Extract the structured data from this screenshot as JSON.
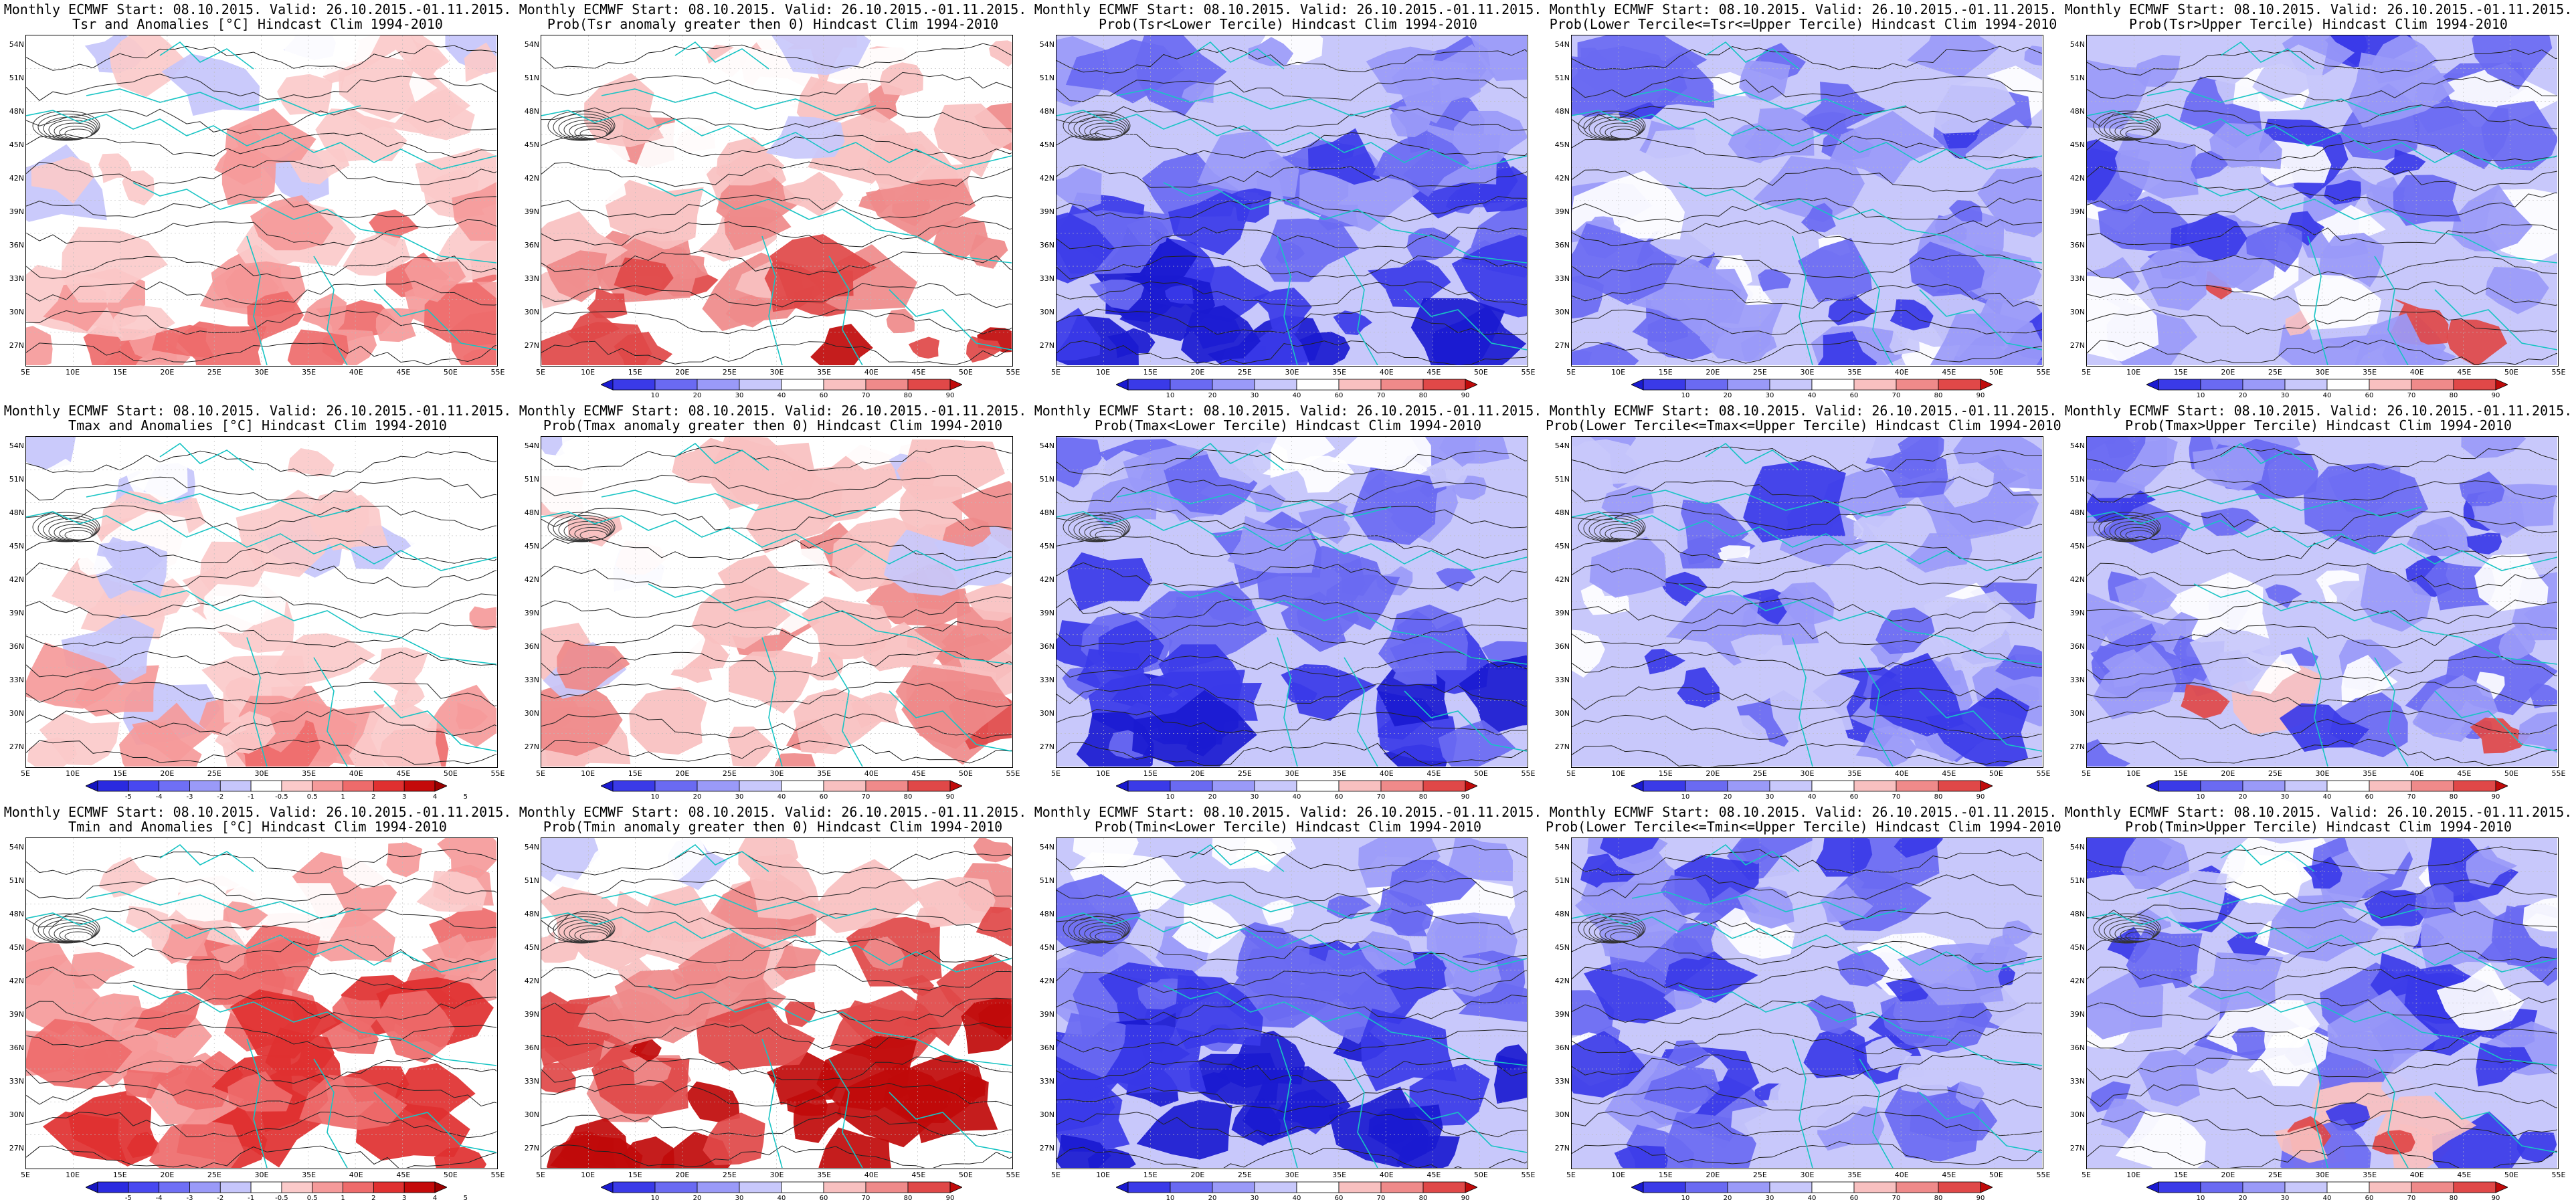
{
  "title_line1": "Monthly ECMWF Start: 08.10.2015. Valid: 26.10.2015.-01.11.2015.",
  "lat_ticks": [
    "54N",
    "51N",
    "48N",
    "45N",
    "42N",
    "39N",
    "36N",
    "33N",
    "30N",
    "27N"
  ],
  "lon_ticks": [
    "5E",
    "10E",
    "15E",
    "20E",
    "25E",
    "30E",
    "35E",
    "40E",
    "45E",
    "50E",
    "55E"
  ],
  "colorbars": {
    "anomaly": {
      "labels": [
        "-5",
        "-4",
        "-3",
        "-2",
        "-1",
        "-0.5",
        "0.5",
        "1",
        "2",
        "3",
        "4",
        "5"
      ],
      "colors": [
        "#1515c0",
        "#2a2ae0",
        "#4848f0",
        "#6f6ff5",
        "#9a9af8",
        "#c6c6fb",
        "#ffffff",
        "#fbcaca",
        "#f59a9a",
        "#ee6b6b",
        "#e03030",
        "#c40a0a",
        "#9c0000"
      ]
    },
    "probability": {
      "labels": [
        "10",
        "20",
        "30",
        "40",
        "60",
        "70",
        "80",
        "90"
      ],
      "colors": [
        "#1a1ad0",
        "#3a3ae8",
        "#6a6af2",
        "#9a9af8",
        "#c8c8fb",
        "#ffffff",
        "#f8c0c0",
        "#ef8a8a",
        "#e04848",
        "#c00a0a"
      ]
    }
  },
  "panels": [
    {
      "title2": "Tsr and Anomalies [°C] Hindcast Clim 1994-2010",
      "kind": "anom",
      "bar": "anomaly",
      "show_bar": false,
      "tone": 0.45
    },
    {
      "title2": "Prob(Tsr anomaly greater then 0) Hindcast Clim 1994-2010",
      "kind": "warm",
      "bar": "probability",
      "show_bar": true,
      "tone": 0.55
    },
    {
      "title2": "Prob(Tsr<Lower Tercile) Hindcast Clim 1994-2010",
      "kind": "cold",
      "bar": "probability",
      "show_bar": true,
      "tone": 0.75
    },
    {
      "title2": "Prob(Lower Tercile<=Tsr<=Upper Tercile) Hindcast Clim 1994-2010",
      "kind": "mid",
      "bar": "probability",
      "show_bar": true,
      "tone": 0.7
    },
    {
      "title2": "Prob(Tsr>Upper Tercile) Hindcast Clim 1994-2010",
      "kind": "upper",
      "bar": "probability",
      "show_bar": true,
      "tone": 0.6
    },
    {
      "title2": "Tmax and Anomalies [°C] Hindcast Clim 1994-2010",
      "kind": "anom",
      "bar": "anomaly",
      "show_bar": true,
      "tone": 0.35
    },
    {
      "title2": "Prob(Tmax anomaly greater then 0) Hindcast Clim 1994-2010",
      "kind": "warm",
      "bar": "probability",
      "show_bar": true,
      "tone": 0.4
    },
    {
      "title2": "Prob(Tmax<Lower Tercile) Hindcast Clim 1994-2010",
      "kind": "cold",
      "bar": "probability",
      "show_bar": true,
      "tone": 0.65
    },
    {
      "title2": "Prob(Lower Tercile<=Tmax<=Upper Tercile) Hindcast Clim 1994-2010",
      "kind": "mid",
      "bar": "probability",
      "show_bar": true,
      "tone": 0.7
    },
    {
      "title2": "Prob(Tmax>Upper Tercile) Hindcast Clim 1994-2010",
      "kind": "upper",
      "bar": "probability",
      "show_bar": true,
      "tone": 0.6
    },
    {
      "title2": "Tmin and Anomalies [°C] Hindcast Clim 1994-2010",
      "kind": "anom",
      "bar": "anomaly",
      "show_bar": true,
      "tone": 0.8
    },
    {
      "title2": "Prob(Tmin anomaly greater then 0) Hindcast Clim 1994-2010",
      "kind": "warm",
      "bar": "probability",
      "show_bar": true,
      "tone": 0.85
    },
    {
      "title2": "Prob(Tmin<Lower Tercile) Hindcast Clim 1994-2010",
      "kind": "cold",
      "bar": "probability",
      "show_bar": true,
      "tone": 0.9
    },
    {
      "title2": "Prob(Lower Tercile<=Tmin<=Upper Tercile) Hindcast Clim 1994-2010",
      "kind": "mid",
      "bar": "probability",
      "show_bar": true,
      "tone": 0.75
    },
    {
      "title2": "Prob(Tmin>Upper Tercile) Hindcast Clim 1994-2010",
      "kind": "upper",
      "bar": "probability",
      "show_bar": true,
      "tone": 0.8
    }
  ]
}
